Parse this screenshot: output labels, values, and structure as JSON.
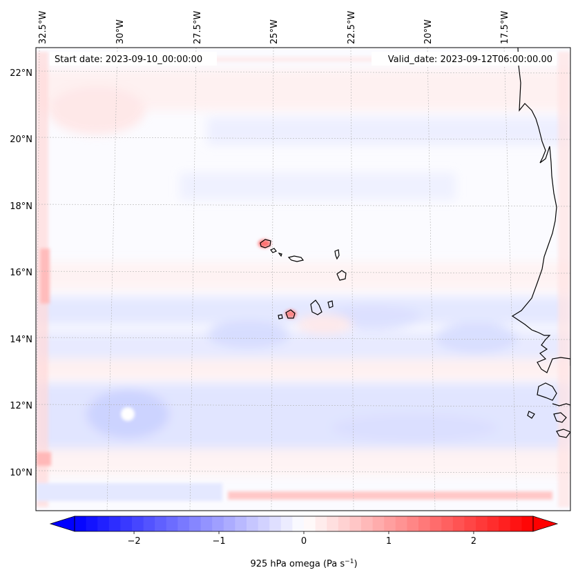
{
  "map": {
    "start_date": "Start date: 2023-09-10_00:00:00",
    "valid_date": "Valid_date: 2023-09-12T06:00:00.00",
    "lon_labels": [
      "32.5°W",
      "30°W",
      "27.5°W",
      "25°W",
      "22.5°W",
      "20°W",
      "17.5°W"
    ],
    "lat_labels": [
      "22°N",
      "20°N",
      "18°N",
      "16°N",
      "14°N",
      "12°N",
      "10°N"
    ],
    "gridlines": "dashed grey",
    "colormap": "bwr",
    "colors": {
      "negative": "#0000ff",
      "zero": "#ffffff",
      "positive": "#ff0000",
      "coastline": "#000000"
    }
  },
  "colorbar": {
    "label": "925 hPa omega (Pa s$^{-1}$)",
    "label_text": "925 hPa omega (Pa s",
    "label_exp": "−1",
    "label_close": ")",
    "min": -2.7,
    "max": 2.7,
    "extend": "both",
    "ticks": [
      {
        "value": -2,
        "label": "−2"
      },
      {
        "value": -1,
        "label": "−1"
      },
      {
        "value": 0,
        "label": "0"
      },
      {
        "value": 1,
        "label": "1"
      },
      {
        "value": 2,
        "label": "2"
      }
    ]
  }
}
